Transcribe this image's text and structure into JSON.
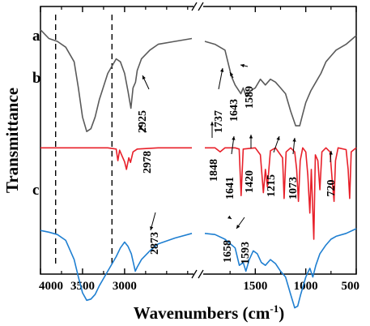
{
  "chart_data": {
    "type": "line",
    "title": "",
    "xlabel": "Wavenumbers (cm",
    "xlabel_sup": "-1",
    "xlabel_end": ")",
    "ylabel": "Transmittance",
    "x_reversed": true,
    "axis_break": [
      2200,
      2000
    ],
    "x_ticks": [
      {
        "value": 4000,
        "label": "4000"
      },
      {
        "value": 3500,
        "label": "3500"
      },
      {
        "value": 3000,
        "label": "3000"
      },
      {
        "value": 1500,
        "label": "1500"
      },
      {
        "value": 1000,
        "label": "1000"
      },
      {
        "value": 500,
        "label": "500"
      }
    ],
    "x_minor_ticks": [
      3750,
      3250,
      2750,
      2500,
      2250,
      1750,
      1250,
      750
    ],
    "dashed_lines_x": [
      3820,
      3150
    ],
    "grid": false,
    "series": [
      {
        "name": "a",
        "color": "#5a5a5a",
        "points": [
          [
            4000,
            0.8
          ],
          [
            3900,
            0.785
          ],
          [
            3800,
            0.78
          ],
          [
            3700,
            0.77
          ],
          [
            3600,
            0.745
          ],
          [
            3550,
            0.7
          ],
          [
            3500,
            0.65
          ],
          [
            3450,
            0.625
          ],
          [
            3400,
            0.63
          ],
          [
            3350,
            0.65
          ],
          [
            3300,
            0.68
          ],
          [
            3200,
            0.725
          ],
          [
            3100,
            0.75
          ],
          [
            3050,
            0.745
          ],
          [
            3000,
            0.725
          ],
          [
            2960,
            0.695
          ],
          [
            2925,
            0.665
          ],
          [
            2900,
            0.7
          ],
          [
            2870,
            0.71
          ],
          [
            2850,
            0.73
          ],
          [
            2800,
            0.75
          ],
          [
            2700,
            0.765
          ],
          [
            2600,
            0.775
          ],
          [
            2400,
            0.78
          ],
          [
            2200,
            0.785
          ],
          [
            2000,
            0.78
          ],
          [
            1900,
            0.775
          ],
          [
            1800,
            0.765
          ],
          [
            1737,
            0.72
          ],
          [
            1700,
            0.705
          ],
          [
            1643,
            0.69
          ],
          [
            1620,
            0.7
          ],
          [
            1589,
            0.685
          ],
          [
            1550,
            0.695
          ],
          [
            1500,
            0.7
          ],
          [
            1450,
            0.715
          ],
          [
            1400,
            0.705
          ],
          [
            1350,
            0.715
          ],
          [
            1300,
            0.71
          ],
          [
            1250,
            0.7
          ],
          [
            1200,
            0.69
          ],
          [
            1150,
            0.66
          ],
          [
            1100,
            0.635
          ],
          [
            1060,
            0.635
          ],
          [
            1030,
            0.655
          ],
          [
            1000,
            0.675
          ],
          [
            950,
            0.695
          ],
          [
            900,
            0.71
          ],
          [
            850,
            0.725
          ],
          [
            800,
            0.745
          ],
          [
            750,
            0.755
          ],
          [
            700,
            0.765
          ],
          [
            600,
            0.775
          ],
          [
            500,
            0.79
          ]
        ]
      },
      {
        "name": "b",
        "color": "#e8202a",
        "points": [
          [
            4000,
            0.597
          ],
          [
            3500,
            0.597
          ],
          [
            3200,
            0.597
          ],
          [
            3100,
            0.595
          ],
          [
            3080,
            0.575
          ],
          [
            3060,
            0.593
          ],
          [
            3030,
            0.583
          ],
          [
            3000,
            0.573
          ],
          [
            2978,
            0.56
          ],
          [
            2950,
            0.58
          ],
          [
            2930,
            0.572
          ],
          [
            2900,
            0.59
          ],
          [
            2850,
            0.595
          ],
          [
            2600,
            0.597
          ],
          [
            2200,
            0.597
          ],
          [
            2000,
            0.597
          ],
          [
            1900,
            0.597
          ],
          [
            1848,
            0.59
          ],
          [
            1800,
            0.597
          ],
          [
            1700,
            0.597
          ],
          [
            1660,
            0.595
          ],
          [
            1641,
            0.515
          ],
          [
            1620,
            0.595
          ],
          [
            1500,
            0.597
          ],
          [
            1450,
            0.585
          ],
          [
            1420,
            0.52
          ],
          [
            1400,
            0.56
          ],
          [
            1380,
            0.53
          ],
          [
            1350,
            0.592
          ],
          [
            1300,
            0.597
          ],
          [
            1230,
            0.58
          ],
          [
            1215,
            0.51
          ],
          [
            1195,
            0.59
          ],
          [
            1150,
            0.597
          ],
          [
            1110,
            0.59
          ],
          [
            1090,
            0.56
          ],
          [
            1073,
            0.505
          ],
          [
            1055,
            0.575
          ],
          [
            1030,
            0.597
          ],
          [
            1000,
            0.59
          ],
          [
            980,
            0.55
          ],
          [
            960,
            0.485
          ],
          [
            945,
            0.56
          ],
          [
            920,
            0.44
          ],
          [
            905,
            0.585
          ],
          [
            880,
            0.575
          ],
          [
            860,
            0.525
          ],
          [
            840,
            0.59
          ],
          [
            800,
            0.597
          ],
          [
            760,
            0.59
          ],
          [
            740,
            0.545
          ],
          [
            720,
            0.505
          ],
          [
            705,
            0.575
          ],
          [
            680,
            0.597
          ],
          [
            600,
            0.594
          ],
          [
            580,
            0.56
          ],
          [
            565,
            0.51
          ],
          [
            550,
            0.59
          ],
          [
            500,
            0.597
          ]
        ]
      },
      {
        "name": "c",
        "color": "#1f7fd1",
        "points": [
          [
            4000,
            0.455
          ],
          [
            3900,
            0.452
          ],
          [
            3800,
            0.448
          ],
          [
            3700,
            0.438
          ],
          [
            3600,
            0.405
          ],
          [
            3550,
            0.375
          ],
          [
            3500,
            0.348
          ],
          [
            3450,
            0.335
          ],
          [
            3400,
            0.337
          ],
          [
            3350,
            0.345
          ],
          [
            3300,
            0.36
          ],
          [
            3200,
            0.385
          ],
          [
            3100,
            0.41
          ],
          [
            3050,
            0.425
          ],
          [
            3000,
            0.435
          ],
          [
            2960,
            0.428
          ],
          [
            2920,
            0.415
          ],
          [
            2873,
            0.385
          ],
          [
            2850,
            0.392
          ],
          [
            2800,
            0.405
          ],
          [
            2700,
            0.42
          ],
          [
            2600,
            0.432
          ],
          [
            2400,
            0.442
          ],
          [
            2200,
            0.45
          ],
          [
            2000,
            0.45
          ],
          [
            1900,
            0.448
          ],
          [
            1800,
            0.44
          ],
          [
            1700,
            0.425
          ],
          [
            1658,
            0.395
          ],
          [
            1620,
            0.4
          ],
          [
            1593,
            0.385
          ],
          [
            1560,
            0.405
          ],
          [
            1520,
            0.42
          ],
          [
            1480,
            0.415
          ],
          [
            1440,
            0.4
          ],
          [
            1400,
            0.395
          ],
          [
            1350,
            0.405
          ],
          [
            1300,
            0.398
          ],
          [
            1250,
            0.385
          ],
          [
            1200,
            0.375
          ],
          [
            1150,
            0.345
          ],
          [
            1110,
            0.322
          ],
          [
            1080,
            0.325
          ],
          [
            1050,
            0.345
          ],
          [
            1000,
            0.375
          ],
          [
            960,
            0.39
          ],
          [
            930,
            0.375
          ],
          [
            900,
            0.395
          ],
          [
            860,
            0.415
          ],
          [
            800,
            0.43
          ],
          [
            750,
            0.44
          ],
          [
            700,
            0.445
          ],
          [
            600,
            0.45
          ],
          [
            500,
            0.458
          ]
        ]
      }
    ],
    "peak_labels": [
      {
        "text": "2925",
        "series": "a"
      },
      {
        "text": "1737",
        "series": "a"
      },
      {
        "text": "1643",
        "series": "a"
      },
      {
        "text": "1589",
        "series": "a"
      },
      {
        "text": "2978",
        "series": "b"
      },
      {
        "text": "1848",
        "series": "b"
      },
      {
        "text": "1641",
        "series": "b"
      },
      {
        "text": "1420",
        "series": "b"
      },
      {
        "text": "1215",
        "series": "b"
      },
      {
        "text": "1073",
        "series": "b"
      },
      {
        "text": "720",
        "series": "b"
      },
      {
        "text": "2873",
        "series": "c"
      },
      {
        "text": "1658",
        "series": "c"
      },
      {
        "text": "1593",
        "series": "c"
      }
    ]
  }
}
